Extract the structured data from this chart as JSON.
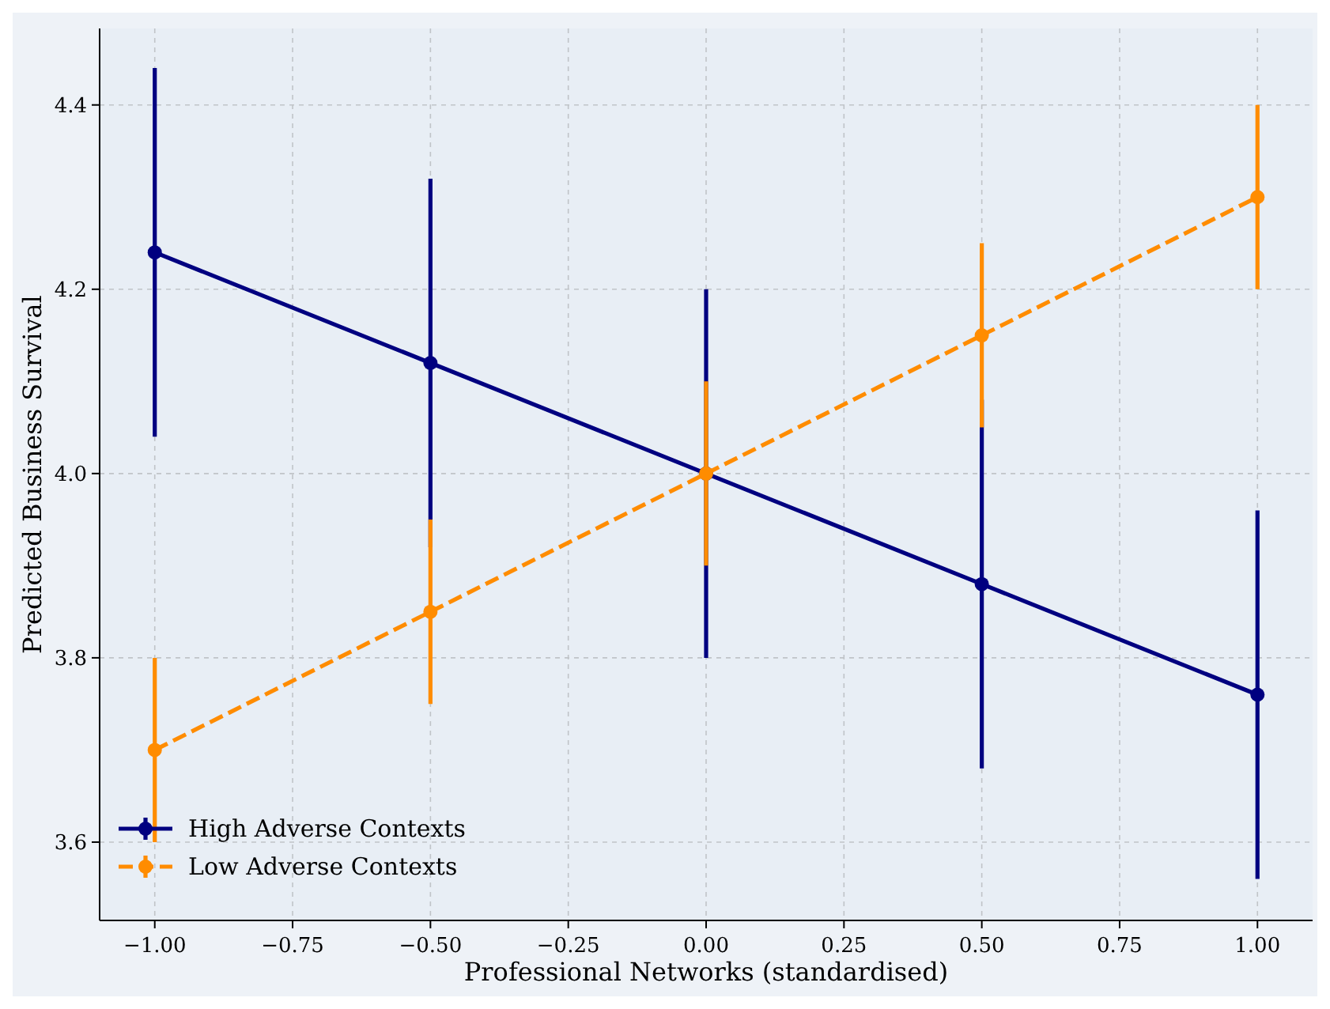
{
  "chart_data": {
    "type": "line",
    "xlabel": "Professional Networks (standardised)",
    "ylabel": "Predicted Business Survival",
    "x": [
      -1,
      -0.5,
      0,
      0.5,
      1
    ],
    "series": [
      {
        "name": "High Adverse Contexts",
        "color": "#000080",
        "values": [
          4.24,
          4.12,
          4.0,
          3.88,
          3.76
        ],
        "errors": [
          0.2,
          0.2,
          0.2,
          0.2,
          0.2
        ],
        "line_style": "solid"
      },
      {
        "name": "Low Adverse Contexts",
        "color": "#ff8c00",
        "values": [
          3.7,
          3.85,
          4.0,
          4.15,
          4.3
        ],
        "errors": [
          0.1,
          0.1,
          0.1,
          0.1,
          0.1
        ],
        "line_style": "dashed"
      }
    ],
    "xlim": [
      -1.1,
      1.1
    ],
    "ylim": [
      3.515,
      4.483
    ],
    "xticks": [
      {
        "value": -1,
        "label": "−1.00"
      },
      {
        "value": -0.75,
        "label": "−0.75"
      },
      {
        "value": -0.5,
        "label": "−0.50"
      },
      {
        "value": -0.25,
        "label": "−0.25"
      },
      {
        "value": 0,
        "label": "0.00"
      },
      {
        "value": 0.25,
        "label": "0.25"
      },
      {
        "value": 0.5,
        "label": "0.50"
      },
      {
        "value": 0.75,
        "label": "0.75"
      },
      {
        "value": 1,
        "label": "1.00"
      }
    ],
    "yticks": [
      {
        "value": 3.6,
        "label": "3.6"
      },
      {
        "value": 3.8,
        "label": "3.8"
      },
      {
        "value": 4.0,
        "label": "4.0"
      },
      {
        "value": 4.2,
        "label": "4.2"
      },
      {
        "value": 4.4,
        "label": "4.4"
      }
    ],
    "grid": true,
    "legend": "bottom left",
    "marker": "circle"
  }
}
